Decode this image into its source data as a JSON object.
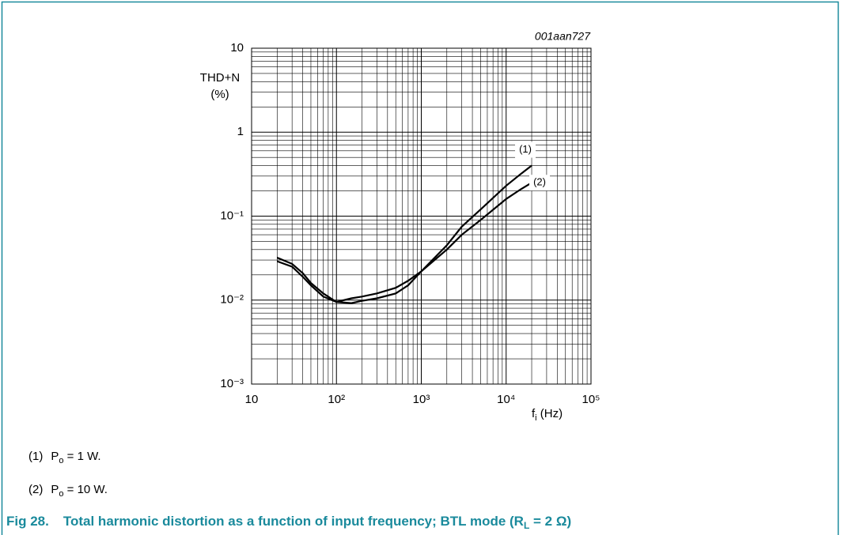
{
  "chart_data": {
    "type": "line",
    "figure_id": "001aan727",
    "ylabel": [
      "THD+N",
      "(%)"
    ],
    "xlabel": [
      "f",
      "i",
      " (Hz)"
    ],
    "xscale": "log",
    "yscale": "log",
    "grid": true,
    "xlim": [
      10,
      100000
    ],
    "xticks": [
      10,
      {
        "value": 100,
        "label": "10²"
      },
      {
        "value": 1000,
        "label": "10³"
      },
      {
        "value": 10000,
        "label": "10⁴"
      },
      {
        "value": 100000,
        "label": "10⁵"
      }
    ],
    "ylim": [
      0.001,
      10
    ],
    "yticks": [
      {
        "value": 0.001,
        "label": "10⁻³"
      },
      {
        "value": 0.01,
        "label": "10⁻²"
      },
      {
        "value": 0.1,
        "label": "10⁻¹"
      },
      1,
      10
    ],
    "x": [
      20,
      30,
      40,
      50,
      70,
      100,
      150,
      200,
      300,
      500,
      700,
      1000,
      2000,
      3000,
      5000,
      10000,
      15000,
      20000
    ],
    "series": [
      {
        "name": "(1)",
        "color": "#000000",
        "values": [
          0.032,
          0.027,
          0.021,
          0.016,
          0.012,
          0.0095,
          0.0092,
          0.0098,
          0.0105,
          0.012,
          0.015,
          0.022,
          0.045,
          0.075,
          0.12,
          0.23,
          0.32,
          0.4
        ]
      },
      {
        "name": "(2)",
        "color": "#000000",
        "values": [
          0.029,
          0.025,
          0.019,
          0.015,
          0.011,
          0.0095,
          0.0105,
          0.011,
          0.012,
          0.014,
          0.017,
          0.022,
          0.04,
          0.06,
          0.09,
          0.16,
          0.21,
          0.25
        ]
      }
    ],
    "notes": [
      [
        "(1)",
        "P",
        "o",
        " = 1 W."
      ],
      [
        "(2)",
        "P",
        "o",
        " = 10 W."
      ]
    ],
    "caption": [
      "Fig 28.",
      "Total harmonic distortion as a function of input frequency; BTL mode (R",
      "L",
      " = 2 Ω)"
    ]
  }
}
